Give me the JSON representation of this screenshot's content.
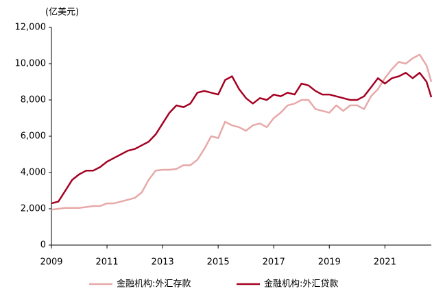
{
  "chart_data": {
    "type": "line",
    "unit_label": "(亿美元)",
    "x": [
      2009,
      2009.25,
      2009.5,
      2009.75,
      2010,
      2010.25,
      2010.5,
      2010.75,
      2011,
      2011.25,
      2011.5,
      2011.75,
      2012,
      2012.25,
      2012.5,
      2012.75,
      2013,
      2013.25,
      2013.5,
      2013.75,
      2014,
      2014.25,
      2014.5,
      2014.75,
      2015,
      2015.25,
      2015.5,
      2015.75,
      2016,
      2016.25,
      2016.5,
      2016.75,
      2017,
      2017.25,
      2017.5,
      2017.75,
      2018,
      2018.25,
      2018.5,
      2018.75,
      2019,
      2019.25,
      2019.5,
      2019.75,
      2020,
      2020.25,
      2020.5,
      2020.75,
      2021,
      2021.25,
      2021.5,
      2021.75,
      2022,
      2022.25,
      2022.5,
      2022.67
    ],
    "series": [
      {
        "name": "金融机构:外汇存款",
        "color": "#e8a8a8",
        "values": [
          1950,
          2000,
          2050,
          2050,
          2050,
          2100,
          2150,
          2150,
          2300,
          2300,
          2400,
          2500,
          2600,
          2900,
          3600,
          4100,
          4150,
          4150,
          4200,
          4400,
          4400,
          4700,
          5300,
          6000,
          5900,
          6800,
          6600,
          6500,
          6300,
          6600,
          6700,
          6500,
          7000,
          7300,
          7700,
          7800,
          8000,
          8000,
          7500,
          7400,
          7300,
          7700,
          7400,
          7700,
          7700,
          7500,
          8200,
          8600,
          9200,
          9700,
          10100,
          10000,
          10300,
          10500,
          9900,
          9000
        ]
      },
      {
        "name": "金融机构:外汇贷款",
        "color": "#a50021",
        "values": [
          2300,
          2400,
          3000,
          3600,
          3900,
          4100,
          4100,
          4300,
          4600,
          4800,
          5000,
          5200,
          5300,
          5500,
          5700,
          6100,
          6700,
          7300,
          7700,
          7600,
          7800,
          8400,
          8500,
          8400,
          8300,
          9100,
          9300,
          8600,
          8100,
          7800,
          8100,
          8000,
          8300,
          8200,
          8400,
          8300,
          8900,
          8800,
          8500,
          8300,
          8300,
          8200,
          8100,
          8000,
          8000,
          8200,
          8700,
          9200,
          8900,
          9200,
          9300,
          9500,
          9200,
          9500,
          9000,
          8150
        ]
      }
    ],
    "xlim": [
      2009,
      2022.67
    ],
    "xticks": [
      2009,
      2011,
      2013,
      2015,
      2017,
      2019,
      2021
    ],
    "ylim": [
      0,
      12000
    ],
    "yticks": [
      0,
      {
        "value": 2000,
        "label": "2,000"
      },
      {
        "value": 4000,
        "label": "4,000"
      },
      {
        "value": 6000,
        "label": "6,000"
      },
      {
        "value": 8000,
        "label": "8,000"
      },
      {
        "value": 10000,
        "label": "10,000"
      },
      {
        "value": 12000,
        "label": "12,000"
      }
    ],
    "legend": "bottom"
  }
}
